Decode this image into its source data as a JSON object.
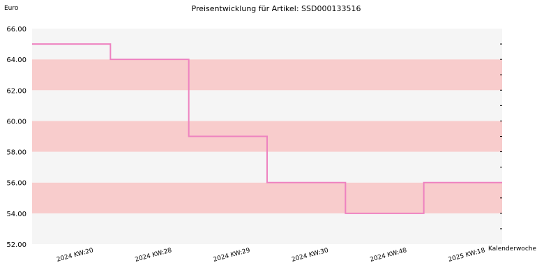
{
  "chart_data": {
    "type": "line",
    "title": "Preisentwicklung für Artikel: SSD000133516",
    "ylabel": "Euro",
    "xlabel": "Kalenderwoche",
    "ylim": [
      52,
      66
    ],
    "yticks": [
      "52.00",
      "54.00",
      "56.00",
      "58.00",
      "60.00",
      "62.00",
      "64.00",
      "66.00"
    ],
    "categories": [
      "2024 KW:20",
      "2024 KW:28",
      "2024 KW:29",
      "2024 KW:30",
      "2024 KW:48",
      "2025 KW:18"
    ],
    "series": [
      {
        "values": [
          65.0,
          64.0,
          59.0,
          56.0,
          54.0,
          56.0
        ]
      }
    ],
    "line_style": "step",
    "grid": "alternating-bands",
    "colors": {
      "line": "#ee82c0",
      "band_light": "#f5f5f5",
      "band_dark": "#f8cccc"
    }
  }
}
